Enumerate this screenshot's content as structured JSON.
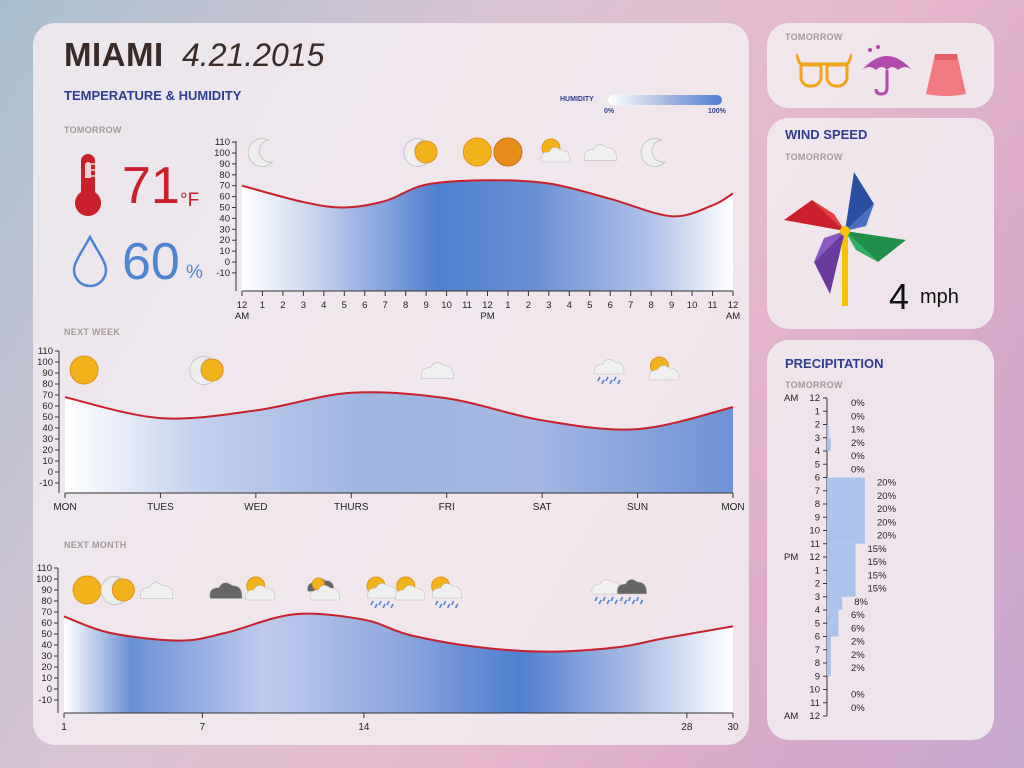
{
  "header": {
    "city": "MIAMI",
    "date": "4.21.2015"
  },
  "section_title": "TEMPERATURE & HUMIDITY",
  "humidity_legend": {
    "label": "HUMIDITY",
    "min": "0%",
    "max": "100%"
  },
  "tomorrow_summary": {
    "label": "TOMORROW",
    "temperature": "71",
    "temperature_unit": "°F",
    "humidity": "60",
    "humidity_unit": "%"
  },
  "chart_data": [
    {
      "type": "area",
      "label": "TOMORROW",
      "y_ticks": [
        "110",
        "100",
        "90",
        "80",
        "70",
        "60",
        "50",
        "40",
        "30",
        "20",
        "10",
        "0",
        "-10"
      ],
      "ylim": [
        -10,
        110
      ],
      "x_ticks": [
        "12",
        "1",
        "2",
        "3",
        "4",
        "5",
        "6",
        "7",
        "8",
        "9",
        "10",
        "11",
        "12",
        "1",
        "2",
        "3",
        "4",
        "5",
        "6",
        "7",
        "8",
        "9",
        "10",
        "11",
        "12"
      ],
      "x_sublabels": [
        {
          "index": 0,
          "text": "AM"
        },
        {
          "index": 12,
          "text": "PM"
        },
        {
          "index": 24,
          "text": "AM"
        }
      ],
      "x": [
        0,
        3,
        5,
        7,
        9,
        12,
        15,
        18,
        21,
        23,
        24
      ],
      "temperature": [
        70,
        55,
        50,
        56,
        71,
        75,
        72,
        58,
        42,
        52,
        63
      ],
      "icons": [
        {
          "x": 1,
          "icon": "moon-icon"
        },
        {
          "x": 8.8,
          "icon": "moon-sun-icon"
        },
        {
          "x": 11.5,
          "icon": "sun-icon"
        },
        {
          "x": 13,
          "icon": "sun-orange-icon"
        },
        {
          "x": 15.2,
          "icon": "partly-cloudy-icon"
        },
        {
          "x": 17.5,
          "icon": "cloud-icon"
        },
        {
          "x": 20.2,
          "icon": "moon-icon"
        }
      ]
    },
    {
      "type": "area",
      "label": "NEXT WEEK",
      "y_ticks": [
        "110",
        "100",
        "90",
        "80",
        "70",
        "60",
        "50",
        "40",
        "30",
        "20",
        "10",
        "0",
        "-10"
      ],
      "ylim": [
        -10,
        110
      ],
      "x_ticks": [
        "MON",
        "TUES",
        "WED",
        "THURS",
        "FRI",
        "SAT",
        "SUN",
        "MON"
      ],
      "x": [
        0,
        1,
        2,
        3,
        4,
        5,
        6,
        7
      ],
      "temperature": [
        68,
        49,
        56,
        72,
        67,
        47,
        39,
        59
      ],
      "icons": [
        {
          "x": 0.2,
          "icon": "sun-icon"
        },
        {
          "x": 1.5,
          "icon": "moon-sun-icon"
        },
        {
          "x": 3.9,
          "icon": "cloud-icon"
        },
        {
          "x": 5.7,
          "icon": "rain-cloud-icon"
        },
        {
          "x": 6.25,
          "icon": "partly-cloudy-icon"
        }
      ]
    },
    {
      "type": "area",
      "label": "NEXT MONTH",
      "y_ticks": [
        "110",
        "100",
        "90",
        "80",
        "70",
        "60",
        "50",
        "40",
        "30",
        "20",
        "10",
        "0",
        "-10"
      ],
      "ylim": [
        -10,
        110
      ],
      "x_ticks": [
        "1",
        "7",
        "14",
        "28",
        "30"
      ],
      "x_tick_values": [
        1,
        7,
        14,
        28,
        30
      ],
      "x": [
        1,
        3,
        6,
        8,
        11,
        14,
        16,
        19,
        22,
        25,
        27,
        30
      ],
      "temperature": [
        66,
        51,
        44,
        51,
        68,
        63,
        49,
        38,
        34,
        38,
        46,
        57
      ],
      "icons": [
        {
          "x": 2,
          "icon": "sun-icon"
        },
        {
          "x": 3.4,
          "icon": "moon-sun-icon"
        },
        {
          "x": 5,
          "icon": "cloud-icon"
        },
        {
          "x": 8,
          "icon": "dark-cloud-icon"
        },
        {
          "x": 9.4,
          "icon": "partly-cloudy-icon"
        },
        {
          "x": 12.2,
          "icon": "storm-cloud-icon"
        },
        {
          "x": 14.7,
          "icon": "sun-cloud-rain-icon"
        },
        {
          "x": 15.9,
          "icon": "partly-cloudy-icon"
        },
        {
          "x": 17.5,
          "icon": "sun-cloud-rain-icon"
        },
        {
          "x": 24.5,
          "icon": "rain-cloud-icon"
        },
        {
          "x": 25.6,
          "icon": "dark-rain-cloud-icon"
        }
      ]
    }
  ],
  "tomorrow_panel": {
    "label": "TOMORROW",
    "items": [
      {
        "icon": "sunglasses-icon",
        "color": "#f2a31a"
      },
      {
        "icon": "umbrella-icon",
        "color": "#b14aaa"
      },
      {
        "icon": "skirt-icon",
        "color": "#f07a80"
      }
    ]
  },
  "wind": {
    "title": "WIND SPEED",
    "label": "TOMORROW",
    "value": "4",
    "unit": "mph"
  },
  "precipitation": {
    "title": "PRECIPITATION",
    "label": "TOMORROW",
    "hours": [
      "12",
      "1",
      "2",
      "3",
      "4",
      "5",
      "6",
      "7",
      "8",
      "9",
      "10",
      "11",
      "12",
      "1",
      "2",
      "3",
      "4",
      "5",
      "6",
      "7",
      "8",
      "9",
      "10",
      "11",
      "12"
    ],
    "meridiems": [
      {
        "index": 0,
        "text": "AM"
      },
      {
        "index": 12,
        "text": "PM"
      },
      {
        "index": 24,
        "text": "AM"
      }
    ],
    "values": [
      0,
      0,
      1,
      2,
      0,
      0,
      20,
      20,
      20,
      20,
      20,
      15,
      15,
      15,
      15,
      8,
      6,
      6,
      2,
      2,
      2,
      null,
      0,
      0,
      null
    ],
    "labels": [
      "0%",
      "0%",
      "1%",
      "2%",
      "0%",
      "0%",
      "20%",
      "20%",
      "20%",
      "20%",
      "20%",
      "15%",
      "15%",
      "15%",
      "15%",
      "8%",
      "6%",
      "6%",
      "2%",
      "2%",
      "2%",
      "",
      "0%",
      "0%",
      ""
    ]
  },
  "colors": {
    "temp_line": "#c9202c",
    "humidity_dark": "#4e7fcf",
    "humidity_light": "#ffffff",
    "title": "#2e3e8f"
  }
}
